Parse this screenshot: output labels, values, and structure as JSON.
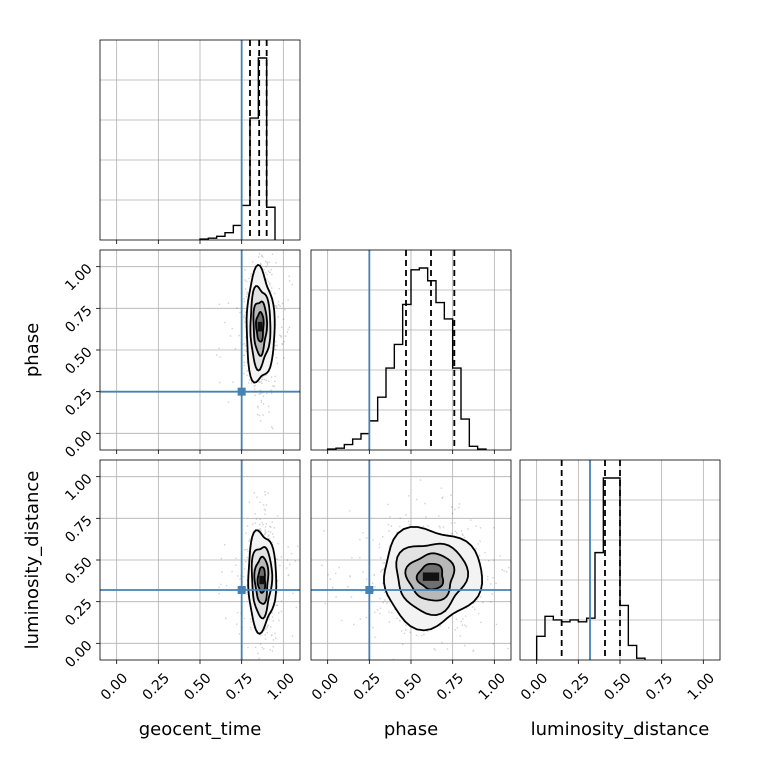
{
  "chart_data": {
    "type": "corner",
    "parameters": [
      "geocent_time",
      "phase",
      "luminosity_distance"
    ],
    "tick_values": [
      0.0,
      0.25,
      0.5,
      0.75,
      1.0
    ],
    "tick_labels": [
      "0.00",
      "0.25",
      "0.50",
      "0.75",
      "1.00"
    ],
    "axis_range": [
      -0.1,
      1.1
    ],
    "truths": {
      "geocent_time": 0.75,
      "phase": 0.25,
      "luminosity_distance": 0.32
    },
    "truth_color": "#4682b4",
    "quantiles": {
      "geocent_time": [
        0.8,
        0.855,
        0.9
      ],
      "phase": [
        0.47,
        0.62,
        0.76
      ],
      "luminosity_distance": [
        0.15,
        0.41,
        0.5
      ]
    },
    "grid": true,
    "histograms": {
      "geocent_time": {
        "bin_edges": [
          0.5,
          0.55,
          0.6,
          0.65,
          0.7,
          0.75,
          0.8,
          0.85,
          0.9,
          0.95
        ],
        "counts": [
          0.5,
          1,
          2,
          4,
          8,
          19,
          67,
          100,
          18
        ]
      },
      "phase": {
        "bin_edges": [
          0.0,
          0.05,
          0.1,
          0.15,
          0.2,
          0.25,
          0.3,
          0.35,
          0.4,
          0.45,
          0.5,
          0.55,
          0.6,
          0.65,
          0.7,
          0.75,
          0.8,
          0.85,
          0.9,
          0.95
        ],
        "counts": [
          0.5,
          1,
          3,
          6,
          9,
          16,
          29,
          45,
          58,
          80,
          99,
          100,
          93,
          81,
          72,
          45,
          17,
          2,
          0.5
        ]
      },
      "luminosity_distance": {
        "bin_edges": [
          0.0,
          0.05,
          0.1,
          0.15,
          0.2,
          0.25,
          0.3,
          0.35,
          0.4,
          0.45,
          0.5,
          0.55,
          0.6,
          0.65
        ],
        "counts": [
          13,
          24,
          22,
          21,
          22,
          21,
          23,
          59,
          100,
          100,
          30,
          8,
          1
        ]
      }
    },
    "joint_panels": [
      {
        "x": "geocent_time",
        "y": "phase",
        "center": [
          0.86,
          0.64
        ],
        "spread": [
          0.04,
          0.16
        ]
      },
      {
        "x": "geocent_time",
        "y": "luminosity_distance",
        "center": [
          0.87,
          0.38
        ],
        "spread": [
          0.04,
          0.14
        ]
      },
      {
        "x": "phase",
        "y": "luminosity_distance",
        "center": [
          0.62,
          0.4
        ],
        "spread": [
          0.14,
          0.14
        ]
      }
    ]
  }
}
